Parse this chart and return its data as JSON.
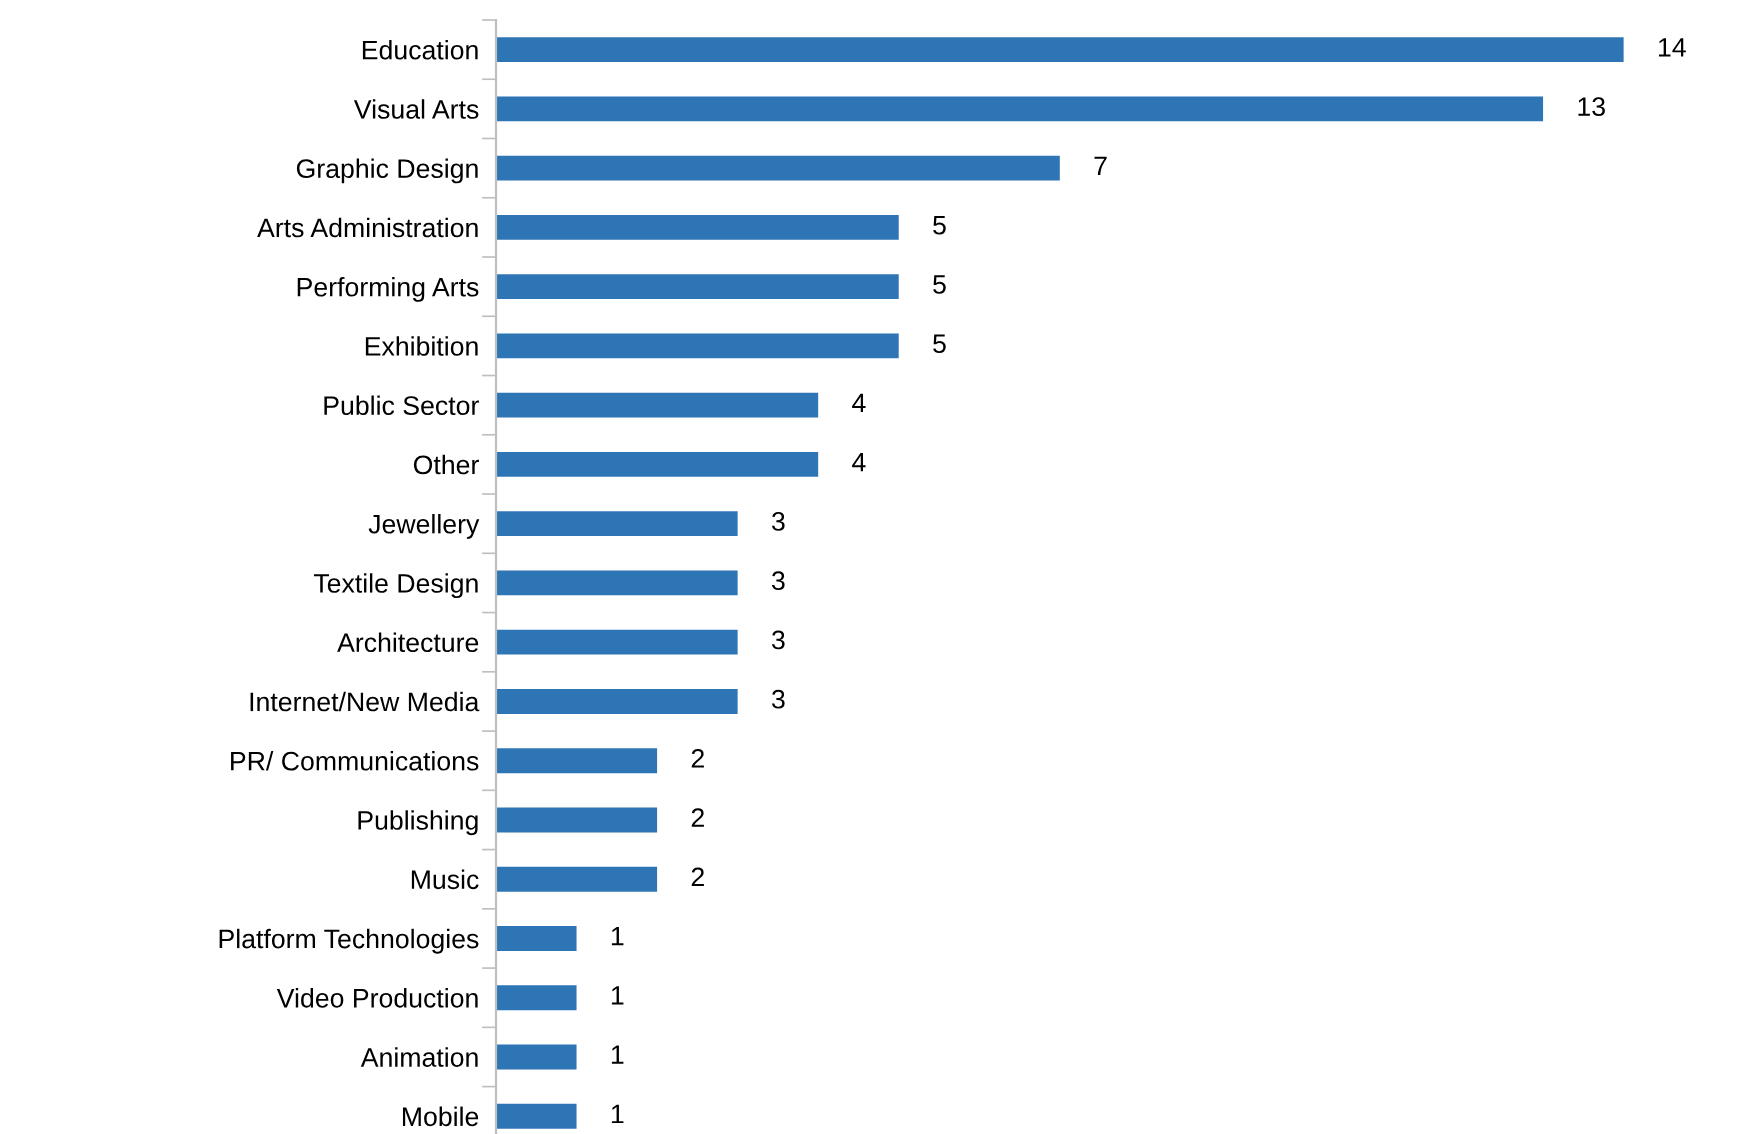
{
  "chart_data": {
    "type": "bar",
    "orientation": "horizontal",
    "data_labels": true,
    "grid": false,
    "legend": false,
    "categories": [
      "Education",
      "Visual Arts",
      "Graphic Design",
      "Arts Administration",
      "Performing Arts",
      "Exhibition",
      "Public Sector",
      "Other",
      "Jewellery",
      "Textile Design",
      "Architecture",
      "Internet/New Media",
      "PR/ Communications",
      "Publishing",
      "Music",
      "Platform Technologies",
      "Video Production",
      "Animation",
      "Mobile"
    ],
    "values": [
      14,
      13,
      7,
      5,
      5,
      5,
      4,
      4,
      3,
      3,
      3,
      3,
      2,
      2,
      2,
      1,
      1,
      1,
      1
    ],
    "color": "#2e75b6"
  }
}
